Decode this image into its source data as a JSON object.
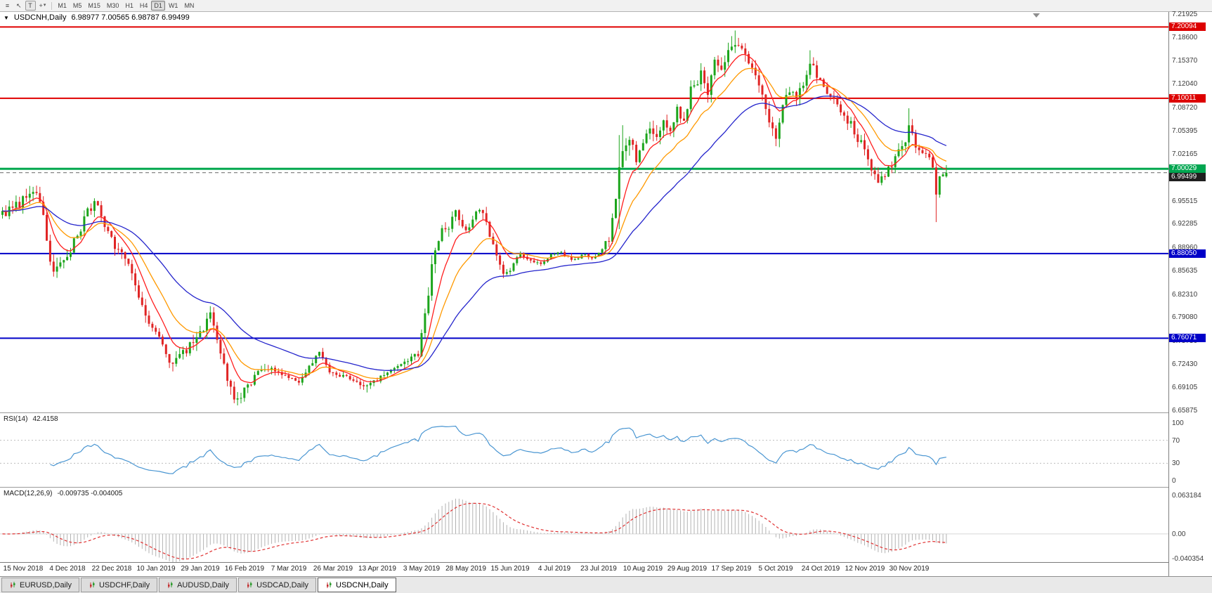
{
  "toolbar": {
    "icons": {
      "menu": "≡",
      "cursor": "↖",
      "text": "T",
      "crosshair": "+",
      "caret": "▾"
    },
    "timeframes": [
      {
        "label": "M1"
      },
      {
        "label": "M5"
      },
      {
        "label": "M15"
      },
      {
        "label": "M30"
      },
      {
        "label": "H1"
      },
      {
        "label": "H4"
      },
      {
        "label": "D1",
        "active": true
      },
      {
        "label": "W1"
      },
      {
        "label": "MN"
      }
    ]
  },
  "quote": {
    "collapse_glyph": "▼",
    "symbol": "USDCNH,Daily",
    "ohlc": "6.98977 7.00565 6.98787 6.99499"
  },
  "rsi_panel": {
    "title": "RSI(14)",
    "value": "42.4158",
    "line_color": "#4a96d2",
    "levels": [
      70,
      30
    ],
    "axis_ticks": [
      {
        "label": "100",
        "v": 100
      },
      {
        "label": "70",
        "v": 70
      },
      {
        "label": "30",
        "v": 30
      },
      {
        "label": "0",
        "v": 0
      }
    ]
  },
  "macd_panel": {
    "title": "MACD(12,26,9)",
    "values": "-0.009735 -0.004005",
    "hist_color": "#b2b2b2",
    "signal_color": "#e03131",
    "axis_max": 0.063184,
    "axis_min": -0.040354,
    "axis_ticks": [
      {
        "label": "0.063184",
        "v": 0.063184
      },
      {
        "label": "0.00",
        "v": 0
      },
      {
        "label": "-0.040354",
        "v": -0.040354
      }
    ]
  },
  "price_axis": {
    "top_value": 7.21925,
    "bottom_value": 6.65875,
    "ticks": [
      "7.21925",
      "7.18600",
      "7.15370",
      "7.12040",
      "7.08720",
      "7.05395",
      "7.02165",
      "6.98840",
      "6.95515",
      "6.92285",
      "6.88960",
      "6.85635",
      "6.82310",
      "6.79080",
      "6.75750",
      "6.72430",
      "6.69105",
      "6.65875"
    ],
    "badges": [
      {
        "value": "7.20094",
        "price": 7.20094,
        "color": "#dd0000"
      },
      {
        "value": "7.10011",
        "price": 7.10011,
        "color": "#dd0000"
      },
      {
        "value": "7.00029",
        "price": 7.00029,
        "color": "#00a650"
      },
      {
        "value": "6.99499",
        "price": 6.99499,
        "color": "#1f1f1f"
      },
      {
        "value": "6.88050",
        "price": 6.8805,
        "color": "#0000c8"
      },
      {
        "value": "6.76071",
        "price": 6.76071,
        "color": "#0000c8"
      }
    ]
  },
  "time_axis": {
    "labels": [
      "15 Nov 2018",
      "4 Dec 2018",
      "22 Dec 2018",
      "10 Jan 2019",
      "29 Jan 2019",
      "16 Feb 2019",
      "7 Mar 2019",
      "26 Mar 2019",
      "13 Apr 2019",
      "3 May 2019",
      "28 May 2019",
      "15 Jun 2019",
      "4 Jul 2019",
      "23 Jul 2019",
      "10 Aug 2019",
      "29 Aug 2019",
      "17 Sep 2019",
      "5 Oct 2019",
      "24 Oct 2019",
      "12 Nov 2019",
      "30 Nov 2019"
    ],
    "bar_indices": [
      6,
      19,
      32,
      45,
      58,
      71,
      84,
      97,
      110,
      123,
      136,
      149,
      162,
      175,
      188,
      201,
      214,
      227,
      240,
      253,
      266
    ]
  },
  "tabbar": {
    "tabs": [
      {
        "label": "EURUSD,Daily"
      },
      {
        "label": "USDCHF,Daily"
      },
      {
        "label": "AUDUSD,Daily"
      },
      {
        "label": "USDCAD,Daily"
      },
      {
        "label": "USDCNH,Daily",
        "active": true
      }
    ]
  },
  "chart_data": {
    "type": "candlestick",
    "symbol": "USDCNH",
    "timeframe": "Daily",
    "bar_count": 278,
    "bar_spacing": 4.85,
    "colors": {
      "up": "#1ca51c",
      "down": "#e02525"
    },
    "last_candle": {
      "open": 6.98977,
      "high": 7.00565,
      "low": 6.98787,
      "close": 6.99499
    },
    "close_anchors": [
      [
        0,
        6.938
      ],
      [
        4,
        6.948
      ],
      [
        8,
        6.963
      ],
      [
        10,
        6.968
      ],
      [
        12,
        6.93
      ],
      [
        15,
        6.848
      ],
      [
        18,
        6.87
      ],
      [
        22,
        6.908
      ],
      [
        25,
        6.94
      ],
      [
        27,
        6.953
      ],
      [
        30,
        6.922
      ],
      [
        33,
        6.892
      ],
      [
        36,
        6.868
      ],
      [
        39,
        6.842
      ],
      [
        42,
        6.79
      ],
      [
        45,
        6.768
      ],
      [
        48,
        6.74
      ],
      [
        50,
        6.722
      ],
      [
        53,
        6.742
      ],
      [
        56,
        6.753
      ],
      [
        59,
        6.778
      ],
      [
        61,
        6.793
      ],
      [
        64,
        6.742
      ],
      [
        67,
        6.69
      ],
      [
        69,
        6.673
      ],
      [
        72,
        6.693
      ],
      [
        75,
        6.713
      ],
      [
        78,
        6.718
      ],
      [
        81,
        6.71
      ],
      [
        84,
        6.706
      ],
      [
        87,
        6.694
      ],
      [
        90,
        6.72
      ],
      [
        93,
        6.738
      ],
      [
        96,
        6.716
      ],
      [
        99,
        6.71
      ],
      [
        102,
        6.701
      ],
      [
        105,
        6.696
      ],
      [
        107,
        6.691
      ],
      [
        110,
        6.703
      ],
      [
        113,
        6.712
      ],
      [
        116,
        6.718
      ],
      [
        119,
        6.728
      ],
      [
        122,
        6.739
      ],
      [
        124,
        6.793
      ],
      [
        126,
        6.862
      ],
      [
        128,
        6.903
      ],
      [
        131,
        6.922
      ],
      [
        133,
        6.943
      ],
      [
        136,
        6.912
      ],
      [
        138,
        6.932
      ],
      [
        140,
        6.948
      ],
      [
        143,
        6.908
      ],
      [
        145,
        6.878
      ],
      [
        147,
        6.853
      ],
      [
        149,
        6.857
      ],
      [
        152,
        6.88
      ],
      [
        155,
        6.873
      ],
      [
        158,
        6.863
      ],
      [
        161,
        6.877
      ],
      [
        164,
        6.885
      ],
      [
        167,
        6.871
      ],
      [
        170,
        6.879
      ],
      [
        173,
        6.873
      ],
      [
        176,
        6.887
      ],
      [
        178,
        6.903
      ],
      [
        180,
        6.963
      ],
      [
        182,
        7.023
      ],
      [
        184,
        7.048
      ],
      [
        186,
        7.003
      ],
      [
        188,
        7.038
      ],
      [
        190,
        7.058
      ],
      [
        192,
        7.041
      ],
      [
        194,
        7.063
      ],
      [
        196,
        7.049
      ],
      [
        198,
        7.083
      ],
      [
        200,
        7.063
      ],
      [
        202,
        7.113
      ],
      [
        205,
        7.133
      ],
      [
        207,
        7.109
      ],
      [
        209,
        7.148
      ],
      [
        211,
        7.133
      ],
      [
        213,
        7.163
      ],
      [
        215,
        7.183
      ],
      [
        217,
        7.169
      ],
      [
        219,
        7.149
      ],
      [
        221,
        7.133
      ],
      [
        223,
        7.113
      ],
      [
        225,
        7.063
      ],
      [
        227,
        7.049
      ],
      [
        229,
        7.093
      ],
      [
        231,
        7.113
      ],
      [
        233,
        7.099
      ],
      [
        235,
        7.123
      ],
      [
        237,
        7.149
      ],
      [
        239,
        7.133
      ],
      [
        241,
        7.119
      ],
      [
        243,
        7.103
      ],
      [
        245,
        7.089
      ],
      [
        247,
        7.073
      ],
      [
        249,
        7.063
      ],
      [
        251,
        7.043
      ],
      [
        253,
        7.029
      ],
      [
        255,
        7.003
      ],
      [
        257,
        6.979
      ],
      [
        259,
        6.993
      ],
      [
        261,
        7.009
      ],
      [
        263,
        7.023
      ],
      [
        265,
        7.039
      ],
      [
        266,
        7.063
      ],
      [
        267,
        7.049
      ],
      [
        268,
        7.033
      ],
      [
        270,
        7.023
      ],
      [
        272,
        7.013
      ],
      [
        273,
        7.003
      ],
      [
        274,
        6.963
      ],
      [
        275,
        6.989
      ],
      [
        276,
        6.992
      ],
      [
        277,
        6.99499
      ]
    ],
    "volatility_anchors": [
      [
        0,
        0.02
      ],
      [
        15,
        0.024
      ],
      [
        30,
        0.018
      ],
      [
        45,
        0.02
      ],
      [
        55,
        0.022
      ],
      [
        69,
        0.022
      ],
      [
        80,
        0.012
      ],
      [
        95,
        0.011
      ],
      [
        110,
        0.01
      ],
      [
        122,
        0.013
      ],
      [
        126,
        0.026
      ],
      [
        133,
        0.018
      ],
      [
        145,
        0.016
      ],
      [
        152,
        0.008
      ],
      [
        176,
        0.008
      ],
      [
        181,
        0.03
      ],
      [
        186,
        0.026
      ],
      [
        200,
        0.02
      ],
      [
        215,
        0.022
      ],
      [
        228,
        0.022
      ],
      [
        241,
        0.016
      ],
      [
        255,
        0.018
      ],
      [
        266,
        0.02
      ],
      [
        271,
        0.012
      ],
      [
        277,
        0.006
      ]
    ],
    "wick_overrides": [
      {
        "bar": 69,
        "low": 6.668
      },
      {
        "bar": 107,
        "low": 6.684
      },
      {
        "bar": 181,
        "low": 6.915,
        "high": 7.048
      },
      {
        "bar": 182,
        "high": 7.062
      },
      {
        "bar": 214,
        "high": 7.188
      },
      {
        "bar": 215,
        "high": 7.196
      },
      {
        "bar": 237,
        "high": 7.168
      },
      {
        "bar": 266,
        "high": 7.086
      },
      {
        "bar": 274,
        "low": 6.925
      }
    ],
    "horizontal_lines": [
      {
        "price": 7.20094,
        "color": "#e00000",
        "width": 2
      },
      {
        "price": 7.10011,
        "color": "#e00000",
        "width": 2
      },
      {
        "price": 7.00029,
        "color": "#00a84f",
        "width": 3
      },
      {
        "price": 6.99499,
        "color": "#666666",
        "width": 1,
        "dashed": true
      },
      {
        "price": 6.8805,
        "color": "#0000c8",
        "width": 2
      },
      {
        "price": 6.76071,
        "color": "#0000c8",
        "width": 2
      }
    ],
    "ma": [
      {
        "period": 8,
        "color": "#ff1e1e"
      },
      {
        "period": 17,
        "color": "#ff9900"
      },
      {
        "period": 40,
        "color": "#2525cc"
      }
    ],
    "rsi": {
      "period": 14
    },
    "macd": {
      "fast": 12,
      "slow": 26,
      "signal": 9
    }
  }
}
